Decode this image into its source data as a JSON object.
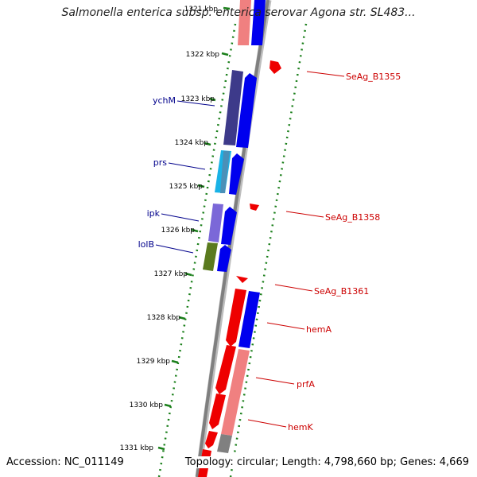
{
  "title": "Salmonella enterica subsp. enterica serovar Agona str. SL483...",
  "footer": {
    "accession": "Accession: NC_011149",
    "topology": "Topology: circular; Length: 4,798,660 bp; Genes: 4,669"
  },
  "colors": {
    "backbone": "#7f7f7f",
    "tick": "#1a7f1a",
    "plus_strand": "#0000ee",
    "minus_strand": "#ee0000",
    "minus_strand_light": "#f08080",
    "ychM": "#3d3a8a",
    "prs": "#19b2e6",
    "ipk": "#7b68d8",
    "lolB": "#5a7a1e",
    "left_label": "#00008b",
    "right_label": "#cc0000"
  },
  "kbp_ticks": [
    "1321 kbp",
    "1322 kbp",
    "1323 kbp",
    "1324 kbp",
    "1325 kbp",
    "1326 kbp",
    "1327 kbp",
    "1328 kbp",
    "1329 kbp",
    "1330 kbp",
    "1331 kbp"
  ],
  "left_gene_labels": [
    "ychM",
    "prs",
    "ipk",
    "lolB"
  ],
  "right_gene_labels": [
    "SeAg_B1355",
    "SeAg_B1358",
    "SeAg_B1361",
    "hemA",
    "prfA",
    "hemK"
  ]
}
